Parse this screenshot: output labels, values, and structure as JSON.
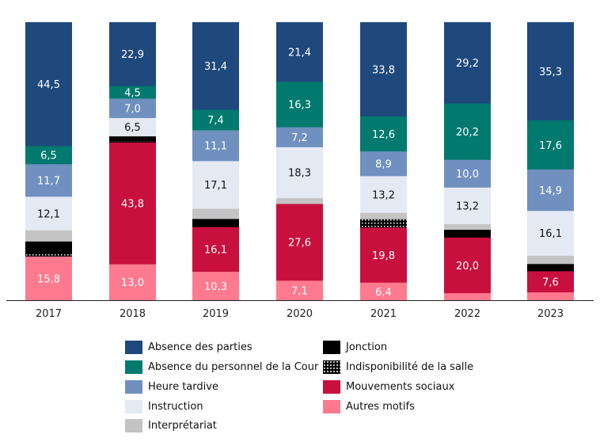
{
  "chart_data": {
    "type": "bar",
    "stacked": true,
    "title": "",
    "xlabel": "",
    "ylabel": "",
    "ylim": [
      0,
      100
    ],
    "grid": false,
    "legend_position": "bottom",
    "categories": [
      "2017",
      "2018",
      "2019",
      "2020",
      "2021",
      "2022",
      "2023"
    ],
    "series": [
      {
        "name": "Autres motifs",
        "color": "#ff7a8f",
        "label_color": "#ffffff",
        "pattern": "solid",
        "values": [
          15.8,
          13.0,
          10.3,
          7.1,
          6.4,
          2.6,
          2.9
        ],
        "labels": [
          "15,8",
          "13,0",
          "10,3",
          "7,1",
          "6,4",
          "",
          ""
        ]
      },
      {
        "name": "Mouvements sociaux",
        "color": "#c8103e",
        "label_color": "#ffffff",
        "pattern": "solid",
        "values": [
          0,
          43.8,
          16.1,
          27.6,
          19.8,
          20.0,
          7.6
        ],
        "labels": [
          "",
          "43,8",
          "16,1",
          "27,6",
          "19,8",
          "20,0",
          "7,6"
        ]
      },
      {
        "name": "Indisponibilité de la salle",
        "color": "#000000",
        "label_color": "#ffffff",
        "pattern": "dotted",
        "values": [
          1.2,
          0.5,
          0,
          0,
          3.0,
          0,
          0
        ],
        "labels": [
          "",
          "",
          "",
          "",
          "",
          "",
          ""
        ]
      },
      {
        "name": "Jonction",
        "color": "#000000",
        "label_color": "#ffffff",
        "pattern": "solid",
        "values": [
          4.2,
          1.7,
          2.9,
          0,
          0,
          2.8,
          2.6
        ],
        "labels": [
          "",
          "",
          "",
          "",
          "",
          "",
          ""
        ]
      },
      {
        "name": "Interprétariat",
        "color": "#c4c4c4",
        "label_color": "#000000",
        "pattern": "solid",
        "values": [
          4.0,
          0.1,
          3.7,
          2.1,
          2.3,
          2.0,
          3.0
        ],
        "labels": [
          "",
          "",
          "",
          "",
          "",
          "",
          ""
        ]
      },
      {
        "name": "Instruction",
        "color": "#e4eaf4",
        "label_color": "#111111",
        "pattern": "solid",
        "values": [
          12.1,
          6.5,
          17.1,
          18.3,
          13.2,
          13.2,
          16.1
        ],
        "labels": [
          "12,1",
          "6,5",
          "17,1",
          "18,3",
          "13,2",
          "13,2",
          "16,1"
        ]
      },
      {
        "name": "Heure tardive",
        "color": "#7090c0",
        "label_color": "#ffffff",
        "pattern": "solid",
        "values": [
          11.7,
          7.0,
          11.1,
          7.2,
          8.9,
          10.0,
          14.9
        ],
        "labels": [
          "11,7",
          "7,0",
          "11,1",
          "7,2",
          "8,9",
          "10,0",
          "14,9"
        ]
      },
      {
        "name": "Absence du personnel de la Cour",
        "color": "#007a6e",
        "label_color": "#ffffff",
        "pattern": "solid",
        "values": [
          6.5,
          4.5,
          7.4,
          16.3,
          12.6,
          20.2,
          17.6
        ],
        "labels": [
          "6,5",
          "4,5",
          "7,4",
          "16,3",
          "12,6",
          "20,2",
          "17,6"
        ]
      },
      {
        "name": "Absence des parties",
        "color": "#1f497d",
        "label_color": "#ffffff",
        "pattern": "solid",
        "values": [
          44.5,
          22.9,
          31.4,
          21.4,
          33.8,
          29.2,
          35.3
        ],
        "labels": [
          "44,5",
          "22,9",
          "31,4",
          "21,4",
          "33,8",
          "29,2",
          "35,3"
        ]
      }
    ],
    "legend": {
      "left": [
        {
          "name": "Absence des parties",
          "color": "#1f497d",
          "pattern": "solid"
        },
        {
          "name": "Absence du personnel de la Cour",
          "color": "#007a6e",
          "pattern": "solid"
        },
        {
          "name": "Heure tardive",
          "color": "#7090c0",
          "pattern": "solid"
        },
        {
          "name": "Instruction",
          "color": "#e4eaf4",
          "pattern": "solid"
        },
        {
          "name": "Interprétariat",
          "color": "#c4c4c4",
          "pattern": "solid"
        }
      ],
      "right": [
        {
          "name": "Jonction",
          "color": "#000000",
          "pattern": "solid"
        },
        {
          "name": "Indisponibilité de la salle",
          "color": "#000000",
          "pattern": "dotted"
        },
        {
          "name": "Mouvements sociaux",
          "color": "#c8103e",
          "pattern": "solid"
        },
        {
          "name": "Autres motifs",
          "color": "#ff7a8f",
          "pattern": "solid"
        }
      ]
    }
  }
}
